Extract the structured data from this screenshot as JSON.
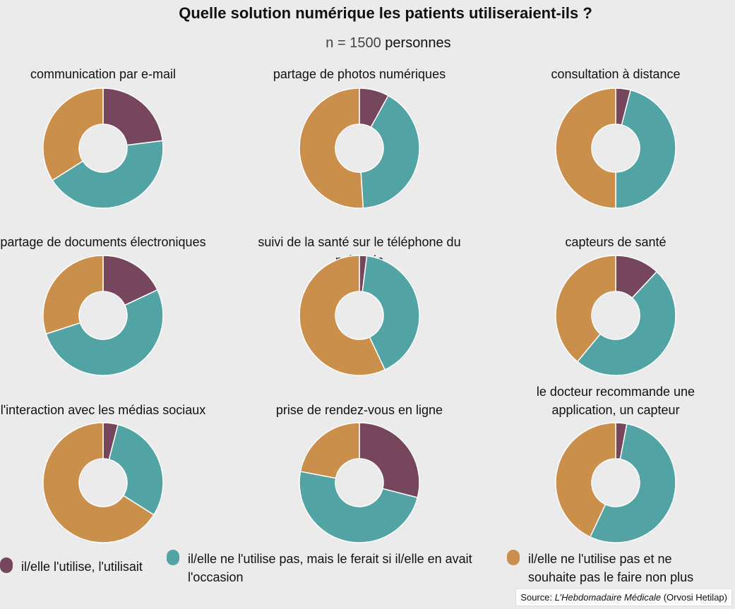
{
  "title": "Quelle solution numérique les patients utiliseraient-ils ?",
  "subtitle": {
    "n": "n = 1500",
    "unit": "personnes"
  },
  "colors": {
    "uses": "#76475c",
    "would_use": "#52a3a4",
    "no": "#cb8f4c"
  },
  "chart_data": {
    "type": "pie",
    "variant": "donut",
    "series_names": [
      "il/elle l'utilise, l'utilisait",
      "il/elle ne l'utilise pas, mais le ferait si il/elle en avait l'occasion",
      "il/elle ne l'utilise pas et ne souhaite pas le faire non plus"
    ],
    "panels": [
      {
        "title": [
          "communication par e-mail"
        ],
        "values": [
          23,
          43,
          34
        ]
      },
      {
        "title": [
          "partage de photos numériques"
        ],
        "values": [
          8,
          41,
          51
        ]
      },
      {
        "title": [
          "consultation à distance"
        ],
        "values": [
          4,
          46,
          50
        ]
      },
      {
        "title": [
          "partage de documents électroniques"
        ],
        "values": [
          18,
          52,
          30
        ]
      },
      {
        "title": [
          "suivi de la santé sur le téléphone du médecin"
        ],
        "values": [
          2,
          41,
          57
        ]
      },
      {
        "title": [
          "capteurs de santé"
        ],
        "values": [
          12,
          49,
          39
        ]
      },
      {
        "title": [
          "l'interaction avec les médias sociaux"
        ],
        "values": [
          4,
          30,
          66
        ]
      },
      {
        "title": [
          "prise de rendez-vous en ligne"
        ],
        "values": [
          29,
          49,
          22
        ]
      },
      {
        "title": [
          "le docteur recommande une",
          "application, un capteur"
        ],
        "values": [
          3,
          54,
          43
        ]
      }
    ]
  },
  "legend": [
    {
      "label": "il/elle l'utilise, l'utilisait",
      "color": "#76475c"
    },
    {
      "label": "il/elle ne l'utilise pas, mais le ferait si il/elle en avait l'occasion",
      "color": "#52a3a4"
    },
    {
      "label": "il/elle ne l'utilise pas et ne souhaite pas le faire non plus",
      "color": "#cb8f4c"
    }
  ],
  "source": {
    "prefix": "Source: ",
    "journal": "L’Hebdomadaire Médicale",
    "suffix": " (Orvosi Hetilap)"
  }
}
